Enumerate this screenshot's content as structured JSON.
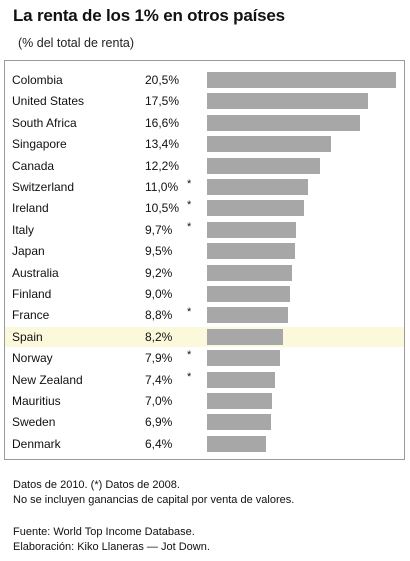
{
  "chart_data": {
    "type": "bar",
    "orientation": "horizontal",
    "title": "La renta de los 1% en otros países",
    "subtitle": "(% del total de renta)",
    "categories": [
      "Colombia",
      "United States",
      "South Africa",
      "Singapore",
      "Canada",
      "Switzerland",
      "Ireland",
      "Italy",
      "Japan",
      "Australia",
      "Finland",
      "France",
      "Spain",
      "Norway",
      "New Zealand",
      "Mauritius",
      "Sweden",
      "Denmark"
    ],
    "values": [
      20.5,
      17.5,
      16.6,
      13.4,
      12.2,
      11.0,
      10.5,
      9.7,
      9.5,
      9.2,
      9.0,
      8.8,
      8.2,
      7.9,
      7.4,
      7.0,
      6.9,
      6.4
    ],
    "value_labels": [
      "20,5%",
      "17,5%",
      "16,6%",
      "13,4%",
      "12,2%",
      "11,0%",
      "10,5%",
      "9,7%",
      "9,5%",
      "9,2%",
      "9,0%",
      "8,8%",
      "8,2%",
      "7,9%",
      "7,4%",
      "7,0%",
      "6,9%",
      "6,4%"
    ],
    "markers": [
      "",
      "",
      "",
      "",
      "",
      "*",
      "*",
      "*",
      "",
      "",
      "",
      "*",
      "",
      "*",
      "*",
      "",
      "",
      ""
    ],
    "highlighted_category": "Spain",
    "xlim": [
      0,
      20.5
    ],
    "grid": false,
    "legend": "none",
    "colors": {
      "bar": "#a7a7a7",
      "highlight_row": "#fcf8dc",
      "frame": "#9a9a9a"
    }
  },
  "footnotes": {
    "line1": "Datos de 2010. (*) Datos de 2008.",
    "line2": "No se incluyen ganancias de capital por venta de valores.",
    "source": "Fuente: World Top Income Database.",
    "credit": "Elaboración: Kiko Llaneras — Jot Down."
  }
}
